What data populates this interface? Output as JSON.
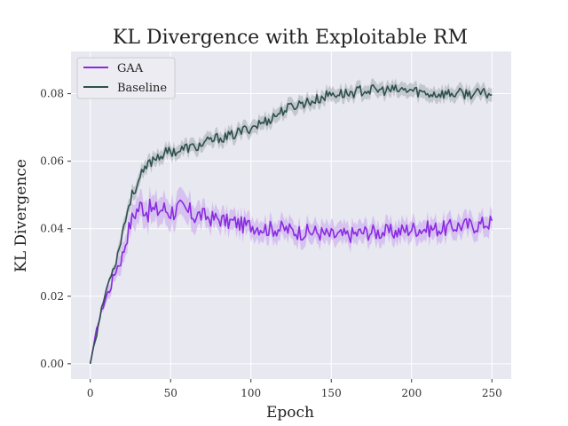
{
  "chart_data": {
    "type": "line",
    "title": "KL Divergence with Exploitable RM",
    "xlabel": "Epoch",
    "ylabel": "KL Divergence",
    "xlim": [
      -12,
      262
    ],
    "ylim": [
      -0.0045,
      0.0925
    ],
    "xticks": [
      0,
      50,
      100,
      150,
      200,
      250
    ],
    "xtick_labels": [
      "0",
      "50",
      "100",
      "150",
      "200",
      "250"
    ],
    "yticks": [
      0.0,
      0.02,
      0.04,
      0.06,
      0.08
    ],
    "ytick_labels": [
      "0.00",
      "0.02",
      "0.04",
      "0.06",
      "0.08"
    ],
    "grid": true,
    "legend_position": "top-left",
    "background_color": "#e8e8f0",
    "series": [
      {
        "name": "GAA",
        "color": "#8a2be2",
        "band_color": "#c9a8ee",
        "x": [
          0,
          2,
          4,
          6,
          8,
          10,
          12,
          14,
          16,
          18,
          20,
          22,
          24,
          26,
          28,
          30,
          32,
          34,
          36,
          38,
          40,
          45,
          50,
          55,
          60,
          65,
          70,
          75,
          80,
          85,
          90,
          95,
          100,
          110,
          120,
          130,
          140,
          150,
          160,
          170,
          180,
          190,
          200,
          210,
          220,
          230,
          240,
          250
        ],
        "values": [
          0.0,
          0.005,
          0.01,
          0.014,
          0.017,
          0.02,
          0.022,
          0.025,
          0.028,
          0.03,
          0.032,
          0.036,
          0.04,
          0.043,
          0.045,
          0.046,
          0.047,
          0.046,
          0.045,
          0.046,
          0.045,
          0.046,
          0.045,
          0.046,
          0.045,
          0.044,
          0.044,
          0.043,
          0.043,
          0.042,
          0.042,
          0.041,
          0.041,
          0.04,
          0.04,
          0.039,
          0.039,
          0.038,
          0.038,
          0.039,
          0.039,
          0.039,
          0.04,
          0.04,
          0.04,
          0.041,
          0.041,
          0.042
        ],
        "spread": [
          0.0,
          0.001,
          0.001,
          0.001,
          0.001,
          0.002,
          0.002,
          0.002,
          0.002,
          0.003,
          0.003,
          0.003,
          0.003,
          0.003,
          0.004,
          0.004,
          0.004,
          0.004,
          0.004,
          0.004,
          0.004,
          0.004,
          0.004,
          0.004,
          0.004,
          0.004,
          0.003,
          0.003,
          0.003,
          0.003,
          0.003,
          0.003,
          0.003,
          0.003,
          0.003,
          0.003,
          0.003,
          0.003,
          0.003,
          0.003,
          0.003,
          0.003,
          0.003,
          0.003,
          0.003,
          0.003,
          0.003,
          0.003
        ]
      },
      {
        "name": "Baseline",
        "color": "#2f4f4f",
        "band_color": "#a7b1b3",
        "x": [
          0,
          2,
          4,
          6,
          8,
          10,
          12,
          14,
          16,
          18,
          20,
          22,
          24,
          26,
          28,
          30,
          32,
          34,
          36,
          38,
          40,
          45,
          50,
          55,
          60,
          65,
          70,
          75,
          80,
          85,
          90,
          95,
          100,
          110,
          120,
          130,
          140,
          150,
          160,
          170,
          180,
          190,
          200,
          210,
          220,
          230,
          240,
          250
        ],
        "values": [
          0.0,
          0.005,
          0.009,
          0.014,
          0.018,
          0.022,
          0.025,
          0.028,
          0.03,
          0.035,
          0.039,
          0.043,
          0.047,
          0.05,
          0.052,
          0.054,
          0.056,
          0.057,
          0.059,
          0.06,
          0.061,
          0.062,
          0.063,
          0.063,
          0.064,
          0.064,
          0.065,
          0.066,
          0.067,
          0.067,
          0.068,
          0.069,
          0.07,
          0.072,
          0.075,
          0.077,
          0.078,
          0.08,
          0.08,
          0.081,
          0.081,
          0.081,
          0.081,
          0.08,
          0.08,
          0.08,
          0.08,
          0.08
        ],
        "spread": [
          0.0,
          0.001,
          0.001,
          0.001,
          0.001,
          0.001,
          0.001,
          0.001,
          0.001,
          0.002,
          0.002,
          0.002,
          0.002,
          0.002,
          0.002,
          0.002,
          0.002,
          0.002,
          0.002,
          0.002,
          0.002,
          0.002,
          0.002,
          0.002,
          0.002,
          0.002,
          0.002,
          0.002,
          0.002,
          0.002,
          0.002,
          0.002,
          0.002,
          0.002,
          0.002,
          0.002,
          0.002,
          0.002,
          0.002,
          0.002,
          0.002,
          0.002,
          0.002,
          0.002,
          0.002,
          0.002,
          0.002,
          0.002
        ]
      }
    ]
  }
}
